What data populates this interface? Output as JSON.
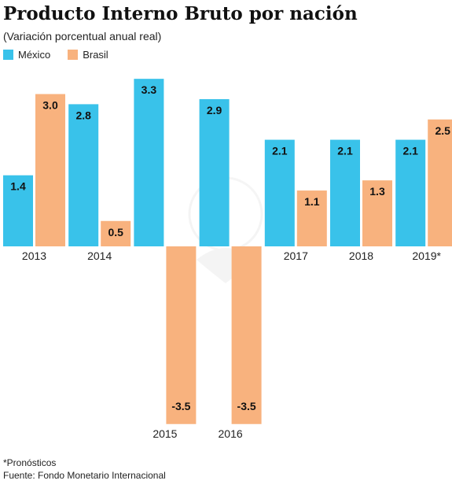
{
  "header": {
    "title": "Producto Interno Bruto por nación",
    "subtitle": "(Variación porcentual anual real)"
  },
  "legend": [
    {
      "label": "México",
      "color": "#39c2ea"
    },
    {
      "label": "Brasil",
      "color": "#f8b27e"
    }
  ],
  "footer": {
    "note": "*Pronósticos",
    "source": "Fuente: Fondo Monetario Internacional"
  },
  "chart_data": {
    "type": "bar",
    "categories": [
      "2013",
      "2014",
      "2015",
      "2016",
      "2017",
      "2018",
      "2019*"
    ],
    "series": [
      {
        "name": "México",
        "color": "#39c2ea",
        "values": [
          1.4,
          2.8,
          3.3,
          2.9,
          2.1,
          2.1,
          2.1
        ],
        "labels": [
          "1.4",
          "2.8",
          "3.3",
          "2.9",
          "2.1",
          "2.1",
          "2.1"
        ]
      },
      {
        "name": "Brasil",
        "color": "#f8b27e",
        "values": [
          3.0,
          0.5,
          -3.5,
          -3.5,
          1.1,
          1.3,
          2.5
        ],
        "labels": [
          "3.0",
          "0.5",
          "-3.5",
          "-3.5",
          "1.1",
          "1.3",
          "2.5"
        ]
      }
    ],
    "ylim": [
      -3.5,
      3.3
    ],
    "grid": false,
    "legend_position": "top-left"
  }
}
